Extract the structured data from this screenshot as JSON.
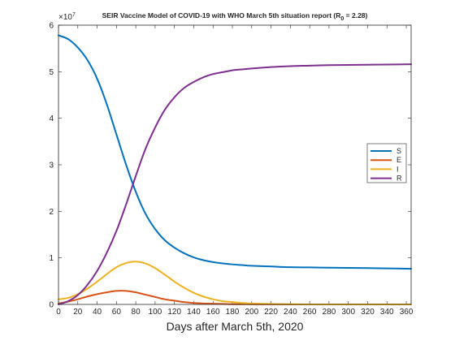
{
  "chart_data": {
    "type": "line",
    "title": "SEIR Vaccine Model of COVID-19 with WHO March 5th situation report (R",
    "title_subscript": "0",
    "title_suffix": " = 2.28)",
    "xlabel": "Days after March 5th, 2020",
    "ylabel": "",
    "exponent_label": "×10",
    "exponent_power": "7",
    "xlim": [
      0,
      365
    ],
    "ylim": [
      0,
      6
    ],
    "xticks": [
      0,
      20,
      40,
      60,
      80,
      100,
      120,
      140,
      160,
      180,
      200,
      220,
      240,
      260,
      280,
      300,
      320,
      340,
      360
    ],
    "yticks": [
      0,
      1,
      2,
      3,
      4,
      5,
      6
    ],
    "grid": false,
    "legend_position": "right",
    "x": [
      0,
      10,
      20,
      30,
      40,
      50,
      60,
      70,
      80,
      90,
      100,
      110,
      120,
      130,
      140,
      150,
      160,
      170,
      180,
      190,
      200,
      220,
      240,
      260,
      280,
      300,
      320,
      340,
      365
    ],
    "series": [
      {
        "name": "S",
        "color": "#0072BD",
        "values": [
          5.78,
          5.7,
          5.52,
          5.25,
          4.85,
          4.3,
          3.65,
          3.0,
          2.42,
          1.95,
          1.62,
          1.38,
          1.22,
          1.1,
          1.01,
          0.95,
          0.91,
          0.88,
          0.86,
          0.845,
          0.83,
          0.815,
          0.8,
          0.795,
          0.79,
          0.785,
          0.78,
          0.775,
          0.765
        ]
      },
      {
        "name": "E",
        "color": "#D95319",
        "values": [
          0.02,
          0.06,
          0.11,
          0.17,
          0.22,
          0.26,
          0.29,
          0.29,
          0.26,
          0.21,
          0.16,
          0.11,
          0.08,
          0.05,
          0.03,
          0.02,
          0.015,
          0.01,
          0.005,
          0.004,
          0.003,
          0.002,
          0.001,
          0.001,
          0.0,
          0.0,
          0.0,
          0.0,
          0.0
        ]
      },
      {
        "name": "I",
        "color": "#EDB120",
        "values": [
          0.11,
          0.14,
          0.22,
          0.34,
          0.49,
          0.65,
          0.8,
          0.89,
          0.92,
          0.88,
          0.78,
          0.64,
          0.49,
          0.36,
          0.25,
          0.17,
          0.11,
          0.07,
          0.05,
          0.03,
          0.02,
          0.01,
          0.005,
          0.0,
          0.0,
          0.0,
          0.0,
          0.0,
          0.0
        ]
      },
      {
        "name": "R",
        "color": "#7E2F8E",
        "values": [
          0.0,
          0.07,
          0.2,
          0.42,
          0.72,
          1.11,
          1.58,
          2.15,
          2.76,
          3.34,
          3.8,
          4.18,
          4.45,
          4.65,
          4.78,
          4.88,
          4.95,
          4.99,
          5.03,
          5.05,
          5.07,
          5.1,
          5.12,
          5.13,
          5.14,
          5.145,
          5.15,
          5.155,
          5.16
        ]
      }
    ]
  }
}
